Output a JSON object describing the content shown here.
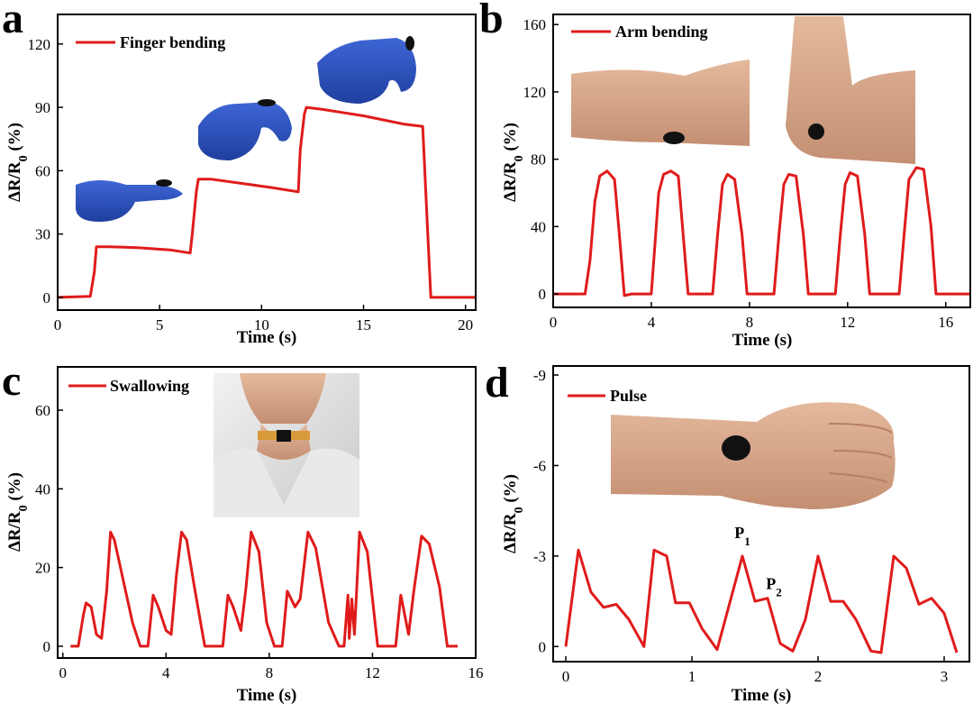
{
  "colors": {
    "series": "#e01b1b",
    "glove": "#2f55c8",
    "skin": "#d8a98a",
    "sensor": "#111111"
  },
  "chart_data": [
    {
      "panel": "a",
      "type": "line",
      "xlabel": "Time (s)",
      "ylabel_parts": [
        "ΔR/R",
        "0",
        " (%)"
      ],
      "xlim": [
        0,
        20.5
      ],
      "ylim": [
        -6,
        134
      ],
      "xticks": [
        0,
        5,
        10,
        15,
        20
      ],
      "yticks": [
        0,
        30,
        60,
        90,
        120
      ],
      "legend": "Finger bending",
      "legend_position": "top-left",
      "inset_images": [
        "finger-bent-slightly",
        "finger-bent-more",
        "finger-bent-fully"
      ],
      "series": [
        {
          "name": "Finger bending",
          "x": [
            0,
            1.6,
            1.8,
            1.9,
            2.5,
            4,
            5.5,
            6.5,
            6.6,
            6.8,
            6.9,
            7.5,
            9,
            10.5,
            11.8,
            11.9,
            12.1,
            12.2,
            13,
            15,
            17,
            17.9,
            18.1,
            18.3,
            19,
            20.5
          ],
          "y": [
            0,
            0.5,
            12,
            24,
            24,
            23.5,
            22.5,
            21,
            30,
            50,
            56,
            56,
            54,
            52,
            50,
            70,
            87,
            90,
            89,
            86,
            82,
            81,
            40,
            0,
            0,
            0
          ]
        }
      ]
    },
    {
      "panel": "b",
      "type": "line",
      "xlabel": "Time (s)",
      "ylabel_parts": [
        "ΔR/R",
        "0",
        " (%)"
      ],
      "xlim": [
        0,
        17
      ],
      "ylim": [
        -8,
        166
      ],
      "xticks": [
        0,
        4,
        8,
        12,
        16
      ],
      "yticks": [
        0,
        40,
        80,
        120,
        160
      ],
      "legend": "Arm bending",
      "legend_position": "top-left",
      "inset_images": [
        "arm-straight",
        "arm-bent"
      ],
      "series": [
        {
          "name": "Arm bending",
          "x": [
            0,
            1.3,
            1.5,
            1.7,
            1.9,
            2.2,
            2.5,
            2.7,
            2.9,
            3.2,
            4,
            4.1,
            4.3,
            4.5,
            4.8,
            5.1,
            5.3,
            5.5,
            5.7,
            6.5,
            6.7,
            6.9,
            7.1,
            7.4,
            7.7,
            7.9,
            8.1,
            8.3,
            9.0,
            9.2,
            9.4,
            9.6,
            9.9,
            10.2,
            10.4,
            10.6,
            10.8,
            11.5,
            11.7,
            11.9,
            12.1,
            12.4,
            12.7,
            12.9,
            13.1,
            13.3,
            14.1,
            14.3,
            14.5,
            14.8,
            15.1,
            15.4,
            15.6,
            15.8,
            17
          ],
          "y": [
            0,
            0,
            20,
            55,
            70,
            73,
            68,
            35,
            -1,
            0,
            0,
            20,
            60,
            71,
            73,
            70,
            35,
            0,
            0,
            0,
            35,
            65,
            71,
            68,
            35,
            0,
            0,
            0,
            0,
            35,
            65,
            71,
            70,
            35,
            0,
            0,
            0,
            0,
            35,
            65,
            72,
            70,
            35,
            0,
            0,
            0,
            0,
            35,
            68,
            75,
            74,
            40,
            0,
            0,
            0
          ]
        }
      ]
    },
    {
      "panel": "c",
      "type": "line",
      "xlabel": "Time (s)",
      "ylabel_parts": [
        "ΔR/R",
        "0",
        " (%)"
      ],
      "xlim": [
        -0.2,
        16
      ],
      "ylim": [
        -3,
        71
      ],
      "xticks": [
        0,
        4,
        8,
        12,
        16
      ],
      "yticks": [
        0,
        20,
        40,
        60
      ],
      "legend": "Swallowing",
      "legend_position": "top-left",
      "inset_images": [
        "neck-with-sensor"
      ],
      "series": [
        {
          "name": "Swallowing",
          "x": [
            0.3,
            0.6,
            0.8,
            0.9,
            1.1,
            1.3,
            1.5,
            1.7,
            1.85,
            2.0,
            2.3,
            2.7,
            3.0,
            3.3,
            3.5,
            3.7,
            4.0,
            4.2,
            4.4,
            4.6,
            4.8,
            5.1,
            5.5,
            5.9,
            6.2,
            6.4,
            6.6,
            6.9,
            7.1,
            7.3,
            7.6,
            7.9,
            8.2,
            8.5,
            8.7,
            9.0,
            9.2,
            9.5,
            9.8,
            10.3,
            10.7,
            10.9,
            11.05,
            11.1,
            11.2,
            11.3,
            11.5,
            11.8,
            12.2,
            12.6,
            12.9,
            13.1,
            13.4,
            13.6,
            13.9,
            14.2,
            14.6,
            14.9,
            15.3
          ],
          "y": [
            0,
            0,
            8,
            11,
            10,
            3,
            2,
            14,
            29,
            27,
            18,
            6,
            0,
            0,
            13,
            10,
            4,
            3,
            18,
            29,
            27,
            15,
            0,
            0,
            0,
            13,
            10,
            4,
            15,
            29,
            24,
            6,
            0,
            0,
            14,
            10,
            12,
            29,
            25,
            6,
            0,
            0,
            13,
            2,
            12,
            3,
            29,
            24,
            0,
            0,
            0,
            13,
            3,
            14,
            28,
            26,
            15,
            0,
            0
          ]
        }
      ]
    },
    {
      "panel": "d",
      "type": "line",
      "xlabel": "Time (s)",
      "ylabel_parts": [
        "ΔR/R",
        "0",
        " (%)"
      ],
      "xlim": [
        -0.1,
        3.2
      ],
      "ylim": [
        0.5,
        -9.3
      ],
      "y_inverted": true,
      "xticks": [
        0,
        1,
        2,
        3
      ],
      "yticks": [
        0,
        -3,
        -6,
        -9
      ],
      "legend": "Pulse",
      "legend_position": "top-left",
      "inset_images": [
        "wrist-with-sensor"
      ],
      "annotations": [
        {
          "label": "P",
          "sub": "1",
          "x": 1.4,
          "y": -3.6
        },
        {
          "label": "P",
          "sub": "2",
          "x": 1.65,
          "y": -1.9
        }
      ],
      "series": [
        {
          "name": "Pulse",
          "x": [
            0,
            0.1,
            0.2,
            0.3,
            0.4,
            0.5,
            0.62,
            0.7,
            0.8,
            0.87,
            0.98,
            1.08,
            1.2,
            1.4,
            1.5,
            1.6,
            1.7,
            1.8,
            1.9,
            2.0,
            2.1,
            2.2,
            2.3,
            2.42,
            2.5,
            2.6,
            2.7,
            2.8,
            2.9,
            3.0,
            3.1
          ],
          "y": [
            0,
            -3.2,
            -1.8,
            -1.3,
            -1.4,
            -0.9,
            0,
            -3.2,
            -3.0,
            -1.45,
            -1.45,
            -0.6,
            0.1,
            -3.0,
            -1.5,
            -1.6,
            -0.1,
            0.15,
            -0.9,
            -3.0,
            -1.5,
            -1.5,
            -0.9,
            0.15,
            0.2,
            -3.0,
            -2.6,
            -1.4,
            -1.6,
            -1.1,
            0.2
          ]
        }
      ]
    }
  ]
}
